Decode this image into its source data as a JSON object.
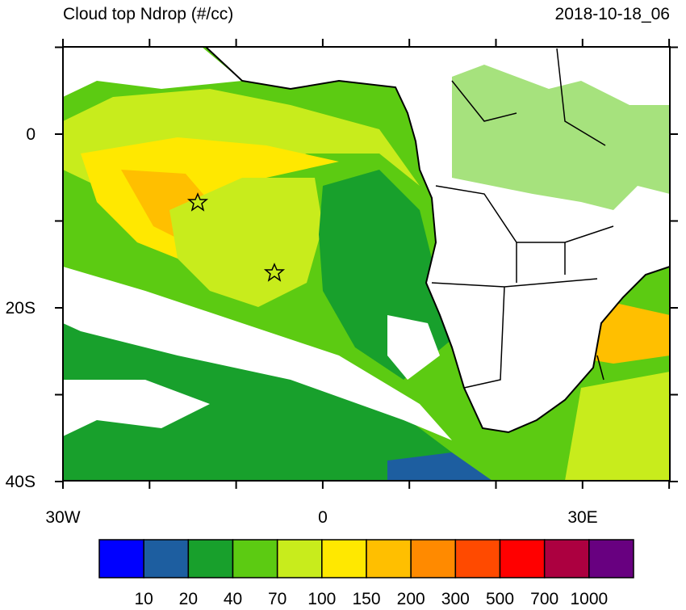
{
  "header": {
    "title": "Cloud top Ndrop (#/cc)",
    "date": "2018-10-18_06"
  },
  "axes": {
    "y_labels": [
      "0",
      "20S",
      "40S"
    ],
    "x_labels": [
      "30W",
      "0",
      "30E"
    ]
  },
  "colorbar": {
    "colors": [
      "#0000ff",
      "#1d5ea0",
      "#18a02c",
      "#5ccb12",
      "#c8ec1c",
      "#ffe800",
      "#ffbf00",
      "#ff8a00",
      "#ff4a00",
      "#ff0000",
      "#ac0040",
      "#680080"
    ],
    "labels": [
      "10",
      "20",
      "40",
      "70",
      "100",
      "150",
      "200",
      "300",
      "500",
      "700",
      "1000"
    ]
  }
}
